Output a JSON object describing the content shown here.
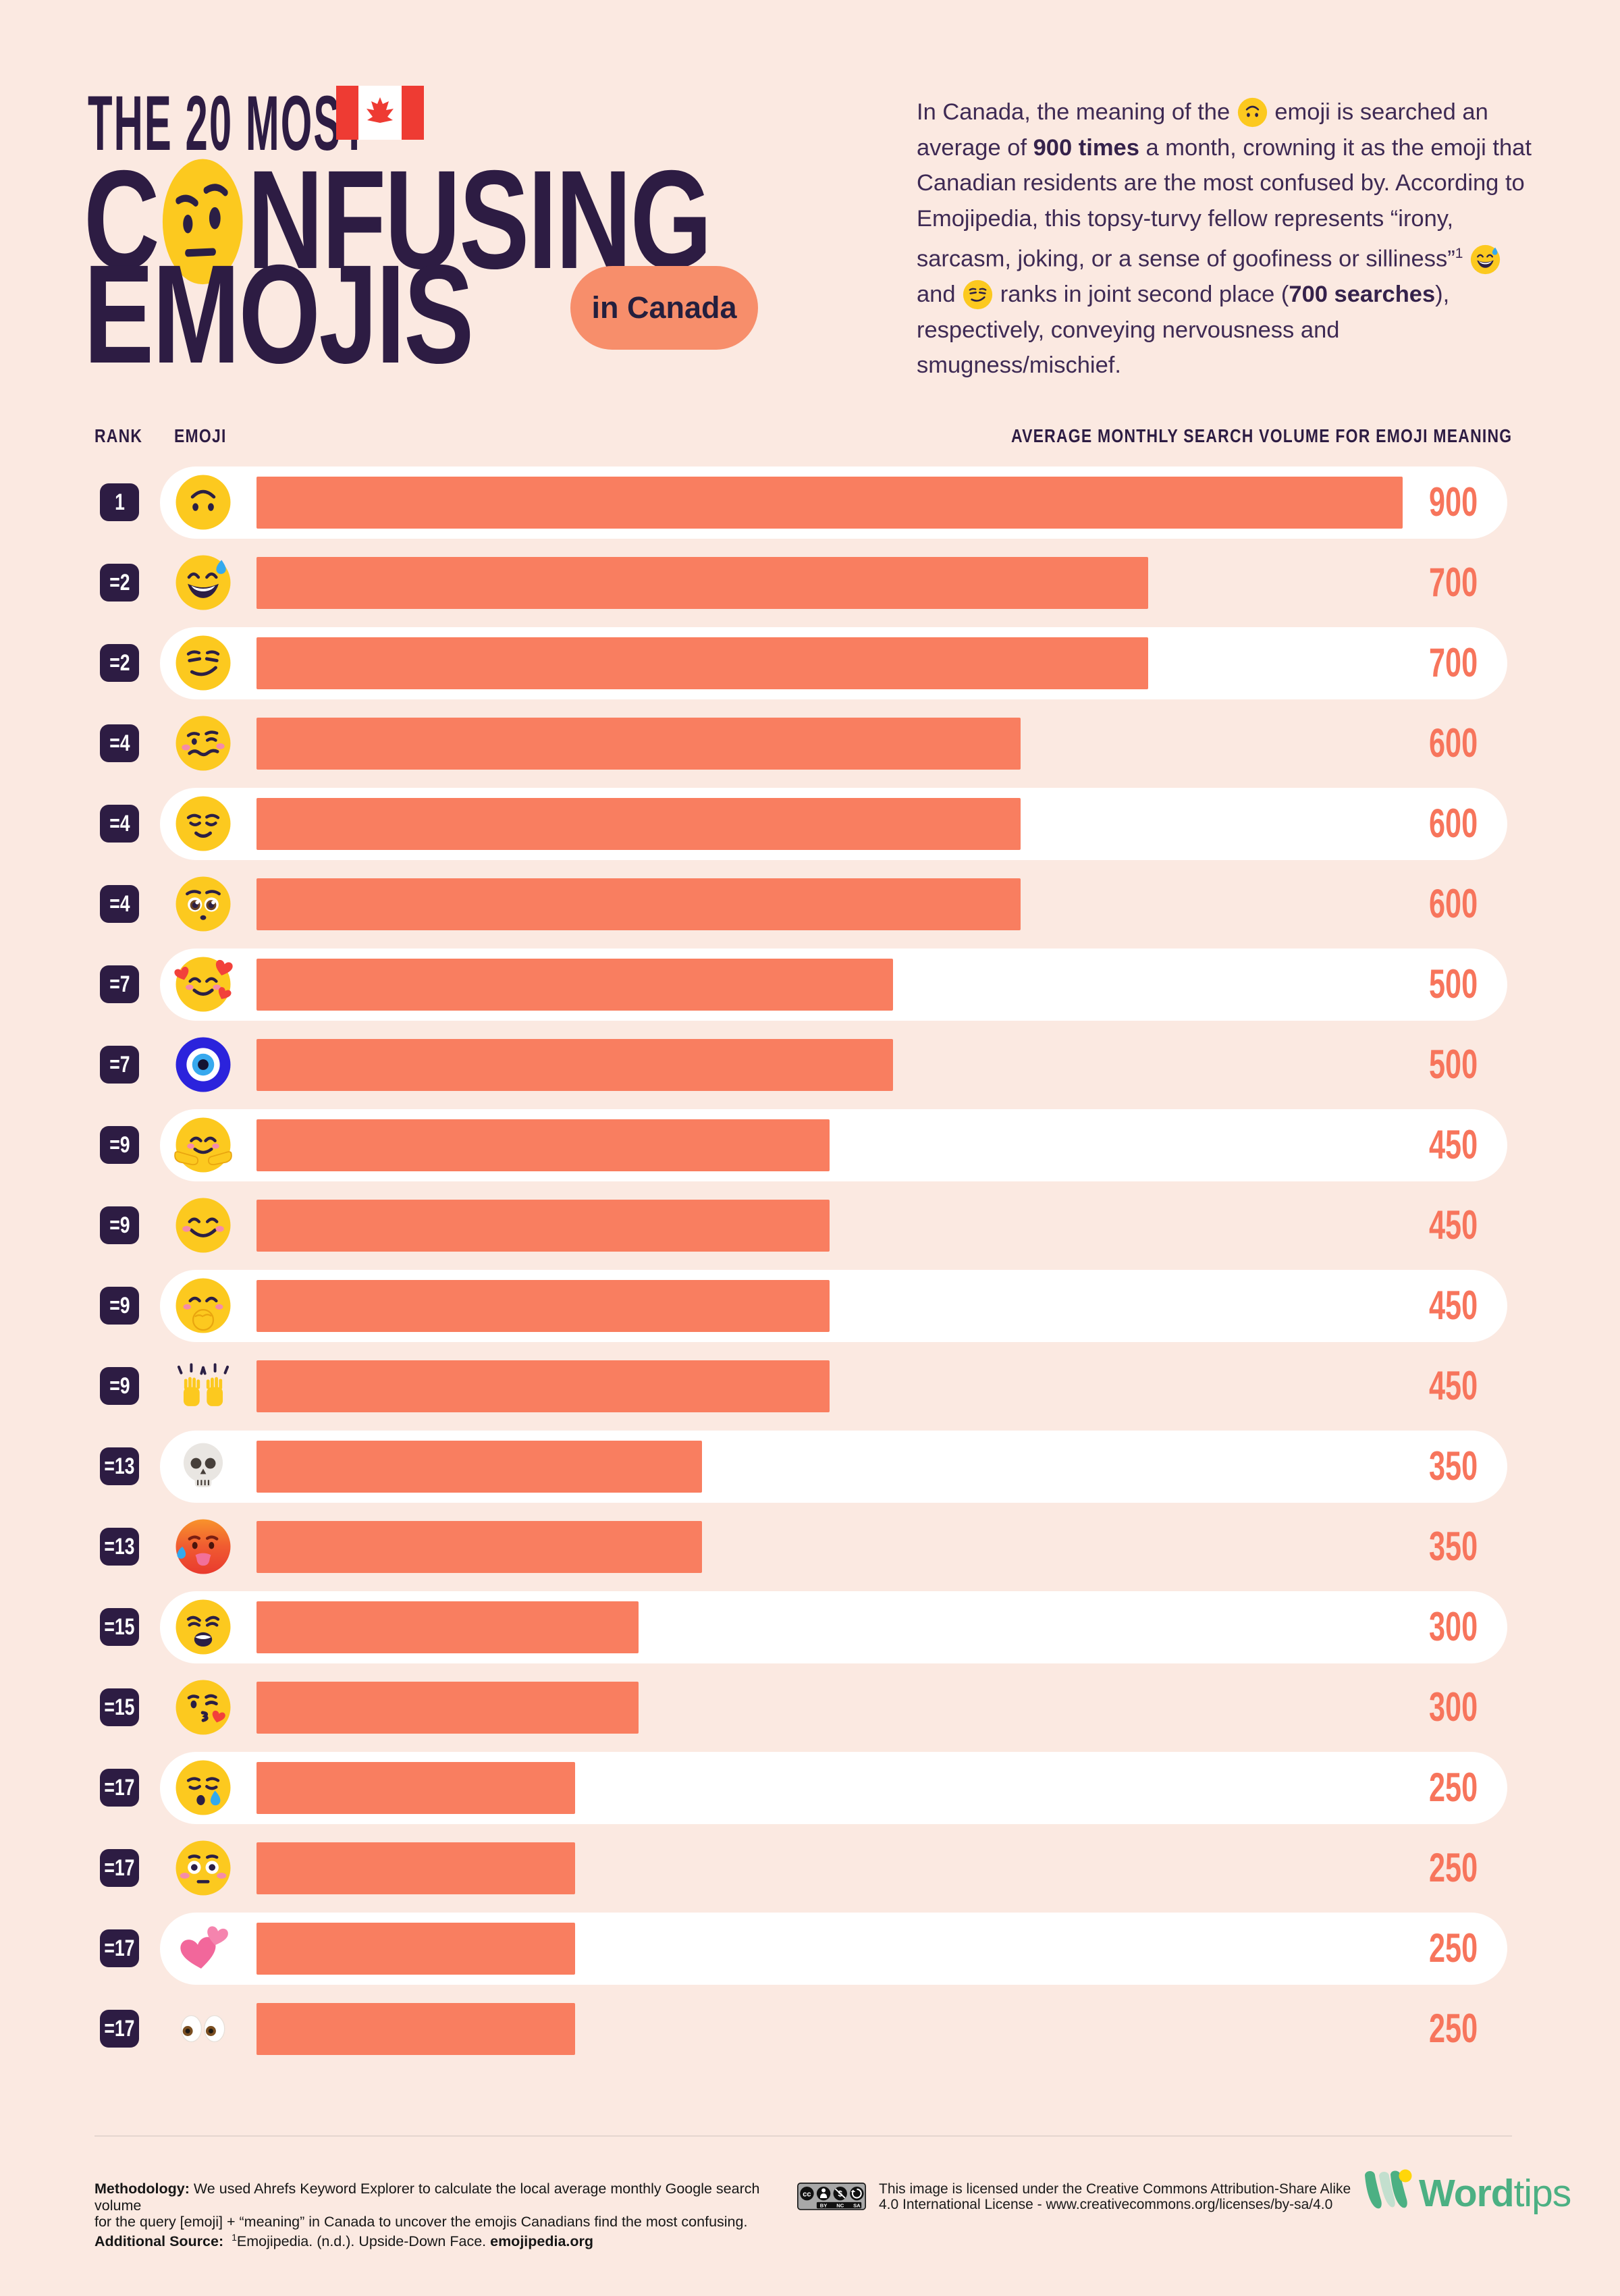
{
  "colors": {
    "background": "#FBE9E1",
    "title_purple": "#2D1C43",
    "bar_coral": "#F97E60",
    "value_coral": "#F7755C",
    "badge_purple": "#2D1C43",
    "row_pill_white": "#FFFFFF",
    "location_pill_coral": "#F78E6B",
    "emoji_yellow": "#FCC91F",
    "canada_red": "#EE3B33",
    "logo_green": "#4CB083",
    "logo_dot_yellow": "#FFD60A"
  },
  "title": {
    "kicker": "THE 20 MOST",
    "flag_icon": "canada-flag-icon",
    "confusing_left": "C",
    "o_emoji": "face-with-raised-eyebrow",
    "confusing_right": "NFUSING",
    "emojis_word": "EMOJIS",
    "location_badge": "in Canada"
  },
  "intro": {
    "segments": [
      {
        "t": "In Canada, the meaning of the "
      },
      {
        "e": "upside-down-face"
      },
      {
        "t": " emoji is searched an average of "
      },
      {
        "b": "900 times"
      },
      {
        "t": " a month, crowning it as the emoji that Canadian residents are the most confused by. According to Emojipedia, this topsy-turvy fellow represents “irony, sarcasm, joking, or a sense of goofiness or silliness”"
      },
      {
        "sup": "1"
      },
      {
        "t": " "
      },
      {
        "e": "grinning-face-with-sweat"
      },
      {
        "t": " and "
      },
      {
        "e": "smirking-face"
      },
      {
        "t": " ranks in joint second place ("
      },
      {
        "b": "700 searches"
      },
      {
        "t": "), respectively, conveying nervousness and smugness/mischief."
      }
    ]
  },
  "table": {
    "headers": {
      "rank": "RANK",
      "emoji": "EMOJI",
      "volume": "AVERAGE MONTHLY SEARCH VOLUME FOR EMOJI MEANING"
    },
    "max_value": 900,
    "rows": [
      {
        "rank": "1",
        "emoji": "upside-down-face",
        "value": 900
      },
      {
        "rank": "=2",
        "emoji": "grinning-face-with-sweat",
        "value": 700
      },
      {
        "rank": "=2",
        "emoji": "smirking-face",
        "value": 700
      },
      {
        "rank": "=4",
        "emoji": "woozy-face",
        "value": 600
      },
      {
        "rank": "=4",
        "emoji": "relieved-face",
        "value": 600
      },
      {
        "rank": "=4",
        "emoji": "pleading-face",
        "value": 600
      },
      {
        "rank": "=7",
        "emoji": "smiling-face-with-hearts",
        "value": 500
      },
      {
        "rank": "=7",
        "emoji": "nazar-amulet",
        "value": 500
      },
      {
        "rank": "=9",
        "emoji": "hugging-face",
        "value": 450
      },
      {
        "rank": "=9",
        "emoji": "smiling-face-with-smiling-eyes",
        "value": 450
      },
      {
        "rank": "=9",
        "emoji": "face-with-hand-over-mouth",
        "value": 450
      },
      {
        "rank": "=9",
        "emoji": "raising-hands",
        "value": 450
      },
      {
        "rank": "=13",
        "emoji": "skull",
        "value": 350
      },
      {
        "rank": "=13",
        "emoji": "hot-face",
        "value": 350
      },
      {
        "rank": "=15",
        "emoji": "weary-face",
        "value": 300
      },
      {
        "rank": "=15",
        "emoji": "face-blowing-a-kiss",
        "value": 300
      },
      {
        "rank": "=17",
        "emoji": "sleepy-face",
        "value": 250
      },
      {
        "rank": "=17",
        "emoji": "flushed-face",
        "value": 250
      },
      {
        "rank": "=17",
        "emoji": "two-hearts",
        "value": 250
      },
      {
        "rank": "=17",
        "emoji": "eyes",
        "value": 250
      }
    ]
  },
  "footer": {
    "methodology_label": "Methodology:",
    "methodology_line1": " We used Ahrefs Keyword Explorer to calculate the local average monthly Google search volume",
    "methodology_line2": "for the query [emoji] + “meaning” in Canada to uncover the emojis Canadians find the most confusing.",
    "additional_label": "Additional Source:",
    "additional_sup": "1",
    "additional_text": "Emojipedia. (n.d.). Upside-Down Face. ",
    "additional_bold": "emojipedia.org",
    "cc_icon": "creative-commons-by-nc-sa-icon",
    "cc_labels": [
      "BY",
      "NC",
      "SA"
    ],
    "license_line1": "This image is licensed under the Creative Commons Attribution-Share Alike",
    "license_line2": "4.0 International License - www.creativecommons.org/licenses/by-sa/4.0",
    "logo_icon": "wordtips-logo-icon",
    "logo_text_bold": "Word",
    "logo_text_light": "tips"
  },
  "chart_data": {
    "type": "bar",
    "title": "The 20 Most Confusing Emojis in Canada",
    "orientation": "horizontal",
    "categories": [
      "upside-down-face",
      "grinning-face-with-sweat",
      "smirking-face",
      "woozy-face",
      "relieved-face",
      "pleading-face",
      "smiling-face-with-hearts",
      "nazar-amulet",
      "hugging-face",
      "smiling-face-with-smiling-eyes",
      "face-with-hand-over-mouth",
      "raising-hands",
      "skull",
      "hot-face",
      "weary-face",
      "face-blowing-a-kiss",
      "sleepy-face",
      "flushed-face",
      "two-hearts",
      "eyes"
    ],
    "ranks": [
      "1",
      "=2",
      "=2",
      "=4",
      "=4",
      "=4",
      "=7",
      "=7",
      "=9",
      "=9",
      "=9",
      "=9",
      "=13",
      "=13",
      "=15",
      "=15",
      "=17",
      "=17",
      "=17",
      "=17"
    ],
    "values": [
      900,
      700,
      700,
      600,
      600,
      600,
      500,
      500,
      450,
      450,
      450,
      450,
      350,
      350,
      300,
      300,
      250,
      250,
      250,
      250
    ],
    "xlabel": "AVERAGE MONTHLY SEARCH VOLUME FOR EMOJI MEANING",
    "ylabel": "RANK / EMOJI",
    "xlim": [
      0,
      900
    ],
    "grid": false,
    "legend": false,
    "bar_color": "#F97E60"
  }
}
